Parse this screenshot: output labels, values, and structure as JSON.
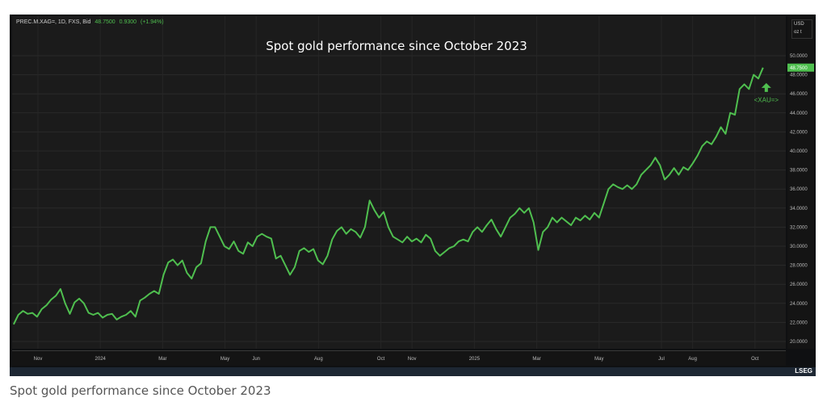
{
  "header": {
    "instrument": "PREC.M.XAG=, 1D, FXS, Bid",
    "last": "48.7500",
    "change": "0.9300",
    "change_pct": "(+1.94%)"
  },
  "unit": {
    "currency": "USD",
    "measure": "oz t"
  },
  "marker": {
    "label": "<XAU=>",
    "arrow": "up-arrow-icon"
  },
  "brand": "LSEG",
  "caption": "Spot gold performance since October 2023",
  "colors": {
    "line": "#4fbf4f",
    "background": "#1b1b1b"
  },
  "chart_data": {
    "type": "line",
    "title": "Spot gold performance since October 2023",
    "xlabel": "",
    "ylabel": "USD oz t",
    "ylim": [
      19,
      52
    ],
    "x_unit": "months since 2023-10-01",
    "x_range": [
      0.22,
      24.26
    ],
    "last_value": "48.7500",
    "xticks": [
      {
        "label": "Nov",
        "x": 1
      },
      {
        "label": "2024",
        "x": 3
      },
      {
        "label": "Mar",
        "x": 5
      },
      {
        "label": "May",
        "x": 7
      },
      {
        "label": "Jun",
        "x": 8
      },
      {
        "label": "Aug",
        "x": 10
      },
      {
        "label": "Oct",
        "x": 12
      },
      {
        "label": "Nov",
        "x": 13
      },
      {
        "label": "2025",
        "x": 15
      },
      {
        "label": "Mar",
        "x": 17
      },
      {
        "label": "May",
        "x": 19
      },
      {
        "label": "Jul",
        "x": 21
      },
      {
        "label": "Aug",
        "x": 22
      },
      {
        "label": "Oct",
        "x": 24
      }
    ],
    "yticks": [
      "20.0000",
      "22.0000",
      "24.0000",
      "26.0000",
      "28.0000",
      "30.0000",
      "32.0000",
      "34.0000",
      "36.0000",
      "38.0000",
      "40.0000",
      "42.0000",
      "44.0000",
      "46.0000",
      "48.0000",
      "50.0000"
    ],
    "series": [
      {
        "name": "<XAU=>",
        "values": [
          21.8,
          22.8,
          23.2,
          22.9,
          23.0,
          22.6,
          23.4,
          23.8,
          24.4,
          24.8,
          25.5,
          24.0,
          22.9,
          24.1,
          24.5,
          24.0,
          23.0,
          22.8,
          23.0,
          22.5,
          22.8,
          22.9,
          22.3,
          22.6,
          22.8,
          23.2,
          22.6,
          24.3,
          24.6,
          25.0,
          25.3,
          25.0,
          27.0,
          28.3,
          28.6,
          28.0,
          28.5,
          27.2,
          26.6,
          27.8,
          28.2,
          30.5,
          32.0,
          32.0,
          31.0,
          30.0,
          29.7,
          30.5,
          29.5,
          29.2,
          30.4,
          30.0,
          31.0,
          31.3,
          31.0,
          30.8,
          28.7,
          29.0,
          28.0,
          27.0,
          27.8,
          29.5,
          29.8,
          29.4,
          29.7,
          28.5,
          28.1,
          29.0,
          30.7,
          31.6,
          32.0,
          31.3,
          31.8,
          31.5,
          30.9,
          32.0,
          34.8,
          33.8,
          33.0,
          33.6,
          32.0,
          31.0,
          30.7,
          30.4,
          31.0,
          30.5,
          30.8,
          30.4,
          31.2,
          30.8,
          29.5,
          29.0,
          29.4,
          29.8,
          30.0,
          30.5,
          30.7,
          30.5,
          31.5,
          32.0,
          31.5,
          32.2,
          32.8,
          31.8,
          31.0,
          32.0,
          33.0,
          33.4,
          34.0,
          33.5,
          34.0,
          32.5,
          29.6,
          31.5,
          32.0,
          33.0,
          32.5,
          33.0,
          32.6,
          32.2,
          33.0,
          32.7,
          33.2,
          32.8,
          33.5,
          33.0,
          34.5,
          36.0,
          36.5,
          36.2,
          36.0,
          36.4,
          36.0,
          36.5,
          37.5,
          38.0,
          38.5,
          39.3,
          38.5,
          37.0,
          37.5,
          38.2,
          37.5,
          38.3,
          38.0,
          38.7,
          39.5,
          40.5,
          41.0,
          40.7,
          41.5,
          42.5,
          41.8,
          44.0,
          43.8,
          46.5,
          47.0,
          46.5,
          48.0,
          47.6,
          48.75
        ]
      }
    ]
  }
}
